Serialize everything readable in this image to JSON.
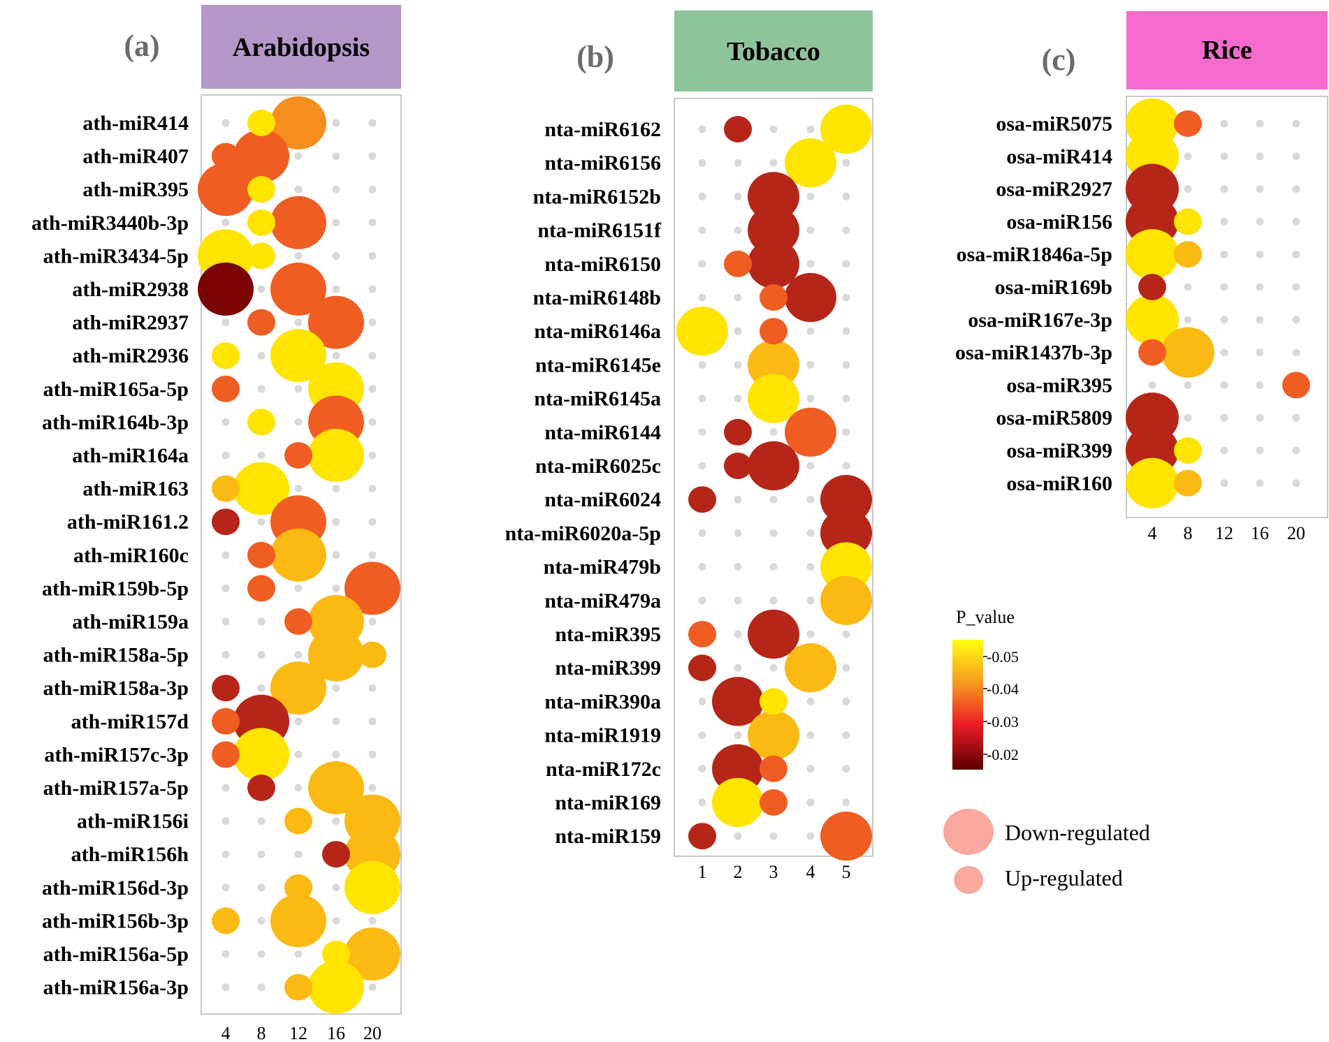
{
  "colors": {
    "panel_a_title_bg": "#b497c9",
    "panel_b_title_bg": "#8fc49b",
    "panel_c_title_bg": "#f56bcd",
    "panel_border": "#c8c8c8",
    "dot_bg": "#d9d9d9",
    "legend_bubble": "#f8a89c",
    "p_0.02": "#7a0404",
    "p_0.025": "#b52619",
    "p_0.03": "#e83221",
    "p_0.035": "#ef5d22",
    "p_0.04": "#f58d1f",
    "p_0.045": "#fbb914",
    "p_0.05": "#ffe400"
  },
  "legend": {
    "p_title": "P_value",
    "colorbar_ticks": [
      "-0.05",
      "-0.04",
      "-0.03",
      "-0.02"
    ],
    "colorbar_values": [
      0.05,
      0.04,
      0.03,
      0.02
    ],
    "size_down_label": "Down-regulated",
    "size_up_label": "Up-regulated"
  },
  "chart_data": [
    {
      "type": "scatter",
      "panel_label": "(a)",
      "title": "Arabidopsis",
      "x_ticks": [
        "4",
        "8",
        "12",
        "16",
        "20"
      ],
      "x_values": [
        4,
        8,
        12,
        16,
        20
      ],
      "rows": [
        "ath-miR414",
        "ath-miR407",
        "ath-miR395",
        "ath-miR3440b-3p",
        "ath-miR3434-5p",
        "ath-miR2938",
        "ath-miR2937",
        "ath-miR2936",
        "ath-miR165a-5p",
        "ath-miR164b-3p",
        "ath-miR164a",
        "ath-miR163",
        "ath-miR161.2",
        "ath-miR160c",
        "ath-miR159b-5p",
        "ath-miR159a",
        "ath-miR158a-5p",
        "ath-miR158a-3p",
        "ath-miR157d",
        "ath-miR157c-3p",
        "ath-miR157a-5p",
        "ath-miR156i",
        "ath-miR156h",
        "ath-miR156d-3p",
        "ath-miR156b-3p",
        "ath-miR156a-5p",
        "ath-miR156a-3p"
      ],
      "points": [
        {
          "row": 0,
          "x": 8,
          "reg": "up",
          "p": 0.05
        },
        {
          "row": 0,
          "x": 12,
          "reg": "down",
          "p": 0.042
        },
        {
          "row": 1,
          "x": 4,
          "reg": "up",
          "p": 0.035
        },
        {
          "row": 1,
          "x": 8,
          "reg": "down",
          "p": 0.035
        },
        {
          "row": 2,
          "x": 4,
          "reg": "down",
          "p": 0.035
        },
        {
          "row": 2,
          "x": 8,
          "reg": "up",
          "p": 0.05
        },
        {
          "row": 3,
          "x": 8,
          "reg": "up",
          "p": 0.05
        },
        {
          "row": 3,
          "x": 12,
          "reg": "down",
          "p": 0.033
        },
        {
          "row": 4,
          "x": 4,
          "reg": "down",
          "p": 0.05
        },
        {
          "row": 4,
          "x": 8,
          "reg": "up",
          "p": 0.05
        },
        {
          "row": 5,
          "x": 4,
          "reg": "down",
          "p": 0.022
        },
        {
          "row": 5,
          "x": 12,
          "reg": "down",
          "p": 0.033
        },
        {
          "row": 6,
          "x": 8,
          "reg": "up",
          "p": 0.035
        },
        {
          "row": 6,
          "x": 16,
          "reg": "down",
          "p": 0.035
        },
        {
          "row": 7,
          "x": 4,
          "reg": "up",
          "p": 0.05
        },
        {
          "row": 7,
          "x": 12,
          "reg": "down",
          "p": 0.05
        },
        {
          "row": 8,
          "x": 4,
          "reg": "up",
          "p": 0.035
        },
        {
          "row": 8,
          "x": 16,
          "reg": "down",
          "p": 0.05
        },
        {
          "row": 9,
          "x": 8,
          "reg": "up",
          "p": 0.05
        },
        {
          "row": 9,
          "x": 16,
          "reg": "down",
          "p": 0.033
        },
        {
          "row": 10,
          "x": 12,
          "reg": "up",
          "p": 0.035
        },
        {
          "row": 10,
          "x": 16,
          "reg": "down",
          "p": 0.05
        },
        {
          "row": 11,
          "x": 4,
          "reg": "up",
          "p": 0.045
        },
        {
          "row": 11,
          "x": 8,
          "reg": "down",
          "p": 0.05
        },
        {
          "row": 12,
          "x": 4,
          "reg": "up",
          "p": 0.025
        },
        {
          "row": 12,
          "x": 12,
          "reg": "down",
          "p": 0.033
        },
        {
          "row": 13,
          "x": 8,
          "reg": "up",
          "p": 0.035
        },
        {
          "row": 13,
          "x": 12,
          "reg": "down",
          "p": 0.045
        },
        {
          "row": 14,
          "x": 8,
          "reg": "up",
          "p": 0.035
        },
        {
          "row": 14,
          "x": 20,
          "reg": "down",
          "p": 0.033
        },
        {
          "row": 15,
          "x": 12,
          "reg": "up",
          "p": 0.035
        },
        {
          "row": 15,
          "x": 16,
          "reg": "down",
          "p": 0.045
        },
        {
          "row": 16,
          "x": 16,
          "reg": "down",
          "p": 0.045
        },
        {
          "row": 16,
          "x": 20,
          "reg": "up",
          "p": 0.045
        },
        {
          "row": 17,
          "x": 4,
          "reg": "up",
          "p": 0.025
        },
        {
          "row": 17,
          "x": 12,
          "reg": "down",
          "p": 0.045
        },
        {
          "row": 18,
          "x": 4,
          "reg": "up",
          "p": 0.035
        },
        {
          "row": 18,
          "x": 8,
          "reg": "down",
          "p": 0.025
        },
        {
          "row": 19,
          "x": 4,
          "reg": "up",
          "p": 0.035
        },
        {
          "row": 19,
          "x": 8,
          "reg": "down",
          "p": 0.05
        },
        {
          "row": 20,
          "x": 8,
          "reg": "up",
          "p": 0.025
        },
        {
          "row": 20,
          "x": 16,
          "reg": "down",
          "p": 0.045
        },
        {
          "row": 21,
          "x": 12,
          "reg": "up",
          "p": 0.045
        },
        {
          "row": 21,
          "x": 20,
          "reg": "down",
          "p": 0.045
        },
        {
          "row": 22,
          "x": 16,
          "reg": "up",
          "p": 0.025
        },
        {
          "row": 22,
          "x": 20,
          "reg": "down",
          "p": 0.045
        },
        {
          "row": 23,
          "x": 12,
          "reg": "up",
          "p": 0.045
        },
        {
          "row": 23,
          "x": 20,
          "reg": "down",
          "p": 0.05
        },
        {
          "row": 24,
          "x": 4,
          "reg": "up",
          "p": 0.045
        },
        {
          "row": 24,
          "x": 12,
          "reg": "down",
          "p": 0.045
        },
        {
          "row": 25,
          "x": 16,
          "reg": "up",
          "p": 0.05
        },
        {
          "row": 25,
          "x": 20,
          "reg": "down",
          "p": 0.045
        },
        {
          "row": 26,
          "x": 12,
          "reg": "up",
          "p": 0.045
        },
        {
          "row": 26,
          "x": 16,
          "reg": "down",
          "p": 0.05
        }
      ]
    },
    {
      "type": "scatter",
      "panel_label": "(b)",
      "title": "Tobacco",
      "x_ticks": [
        "1",
        "2",
        "3",
        "4",
        "5"
      ],
      "x_values": [
        1,
        2,
        3,
        4,
        5
      ],
      "rows": [
        "nta-miR6162",
        "nta-miR6156",
        "nta-miR6152b",
        "nta-miR6151f",
        "nta-miR6150",
        "nta-miR6148b",
        "nta-miR6146a",
        "nta-miR6145e",
        "nta-miR6145a",
        "nta-miR6144",
        "nta-miR6025c",
        "nta-miR6024",
        "nta-miR6020a-5p",
        "nta-miR479b",
        "nta-miR479a",
        "nta-miR395",
        "nta-miR399",
        "nta-miR390a",
        "nta-miR1919",
        "nta-miR172c",
        "nta-miR169",
        "nta-miR159"
      ],
      "points": [
        {
          "row": 0,
          "x": 2,
          "reg": "up",
          "p": 0.025
        },
        {
          "row": 0,
          "x": 5,
          "reg": "down",
          "p": 0.05
        },
        {
          "row": 1,
          "x": 4,
          "reg": "down",
          "p": 0.05
        },
        {
          "row": 2,
          "x": 3,
          "reg": "down",
          "p": 0.025
        },
        {
          "row": 3,
          "x": 3,
          "reg": "down",
          "p": 0.025
        },
        {
          "row": 4,
          "x": 2,
          "reg": "up",
          "p": 0.035
        },
        {
          "row": 4,
          "x": 3,
          "reg": "down",
          "p": 0.025
        },
        {
          "row": 5,
          "x": 3,
          "reg": "up",
          "p": 0.035
        },
        {
          "row": 5,
          "x": 4,
          "reg": "down",
          "p": 0.025
        },
        {
          "row": 6,
          "x": 1,
          "reg": "down",
          "p": 0.05
        },
        {
          "row": 6,
          "x": 3,
          "reg": "up",
          "p": 0.035
        },
        {
          "row": 7,
          "x": 3,
          "reg": "down",
          "p": 0.045
        },
        {
          "row": 8,
          "x": 3,
          "reg": "down",
          "p": 0.05
        },
        {
          "row": 9,
          "x": 2,
          "reg": "up",
          "p": 0.025
        },
        {
          "row": 9,
          "x": 4,
          "reg": "down",
          "p": 0.035
        },
        {
          "row": 10,
          "x": 2,
          "reg": "up",
          "p": 0.025
        },
        {
          "row": 10,
          "x": 3,
          "reg": "down",
          "p": 0.025
        },
        {
          "row": 11,
          "x": 1,
          "reg": "up",
          "p": 0.025
        },
        {
          "row": 11,
          "x": 5,
          "reg": "down",
          "p": 0.025
        },
        {
          "row": 12,
          "x": 5,
          "reg": "down",
          "p": 0.025
        },
        {
          "row": 13,
          "x": 5,
          "reg": "down",
          "p": 0.05
        },
        {
          "row": 14,
          "x": 5,
          "reg": "down",
          "p": 0.045
        },
        {
          "row": 15,
          "x": 1,
          "reg": "up",
          "p": 0.035
        },
        {
          "row": 15,
          "x": 3,
          "reg": "down",
          "p": 0.025
        },
        {
          "row": 16,
          "x": 1,
          "reg": "up",
          "p": 0.025
        },
        {
          "row": 16,
          "x": 4,
          "reg": "down",
          "p": 0.045
        },
        {
          "row": 17,
          "x": 2,
          "reg": "down",
          "p": 0.025
        },
        {
          "row": 17,
          "x": 3,
          "reg": "up",
          "p": 0.05
        },
        {
          "row": 18,
          "x": 3,
          "reg": "down",
          "p": 0.045
        },
        {
          "row": 19,
          "x": 2,
          "reg": "down",
          "p": 0.025
        },
        {
          "row": 19,
          "x": 3,
          "reg": "up",
          "p": 0.035
        },
        {
          "row": 20,
          "x": 2,
          "reg": "down",
          "p": 0.05
        },
        {
          "row": 20,
          "x": 3,
          "reg": "up",
          "p": 0.035
        },
        {
          "row": 21,
          "x": 1,
          "reg": "up",
          "p": 0.025
        },
        {
          "row": 21,
          "x": 5,
          "reg": "down",
          "p": 0.035
        }
      ]
    },
    {
      "type": "scatter",
      "panel_label": "(c)",
      "title": "Rice",
      "x_ticks": [
        "4",
        "8",
        "12",
        "16",
        "20"
      ],
      "x_values": [
        4,
        8,
        12,
        16,
        20
      ],
      "rows": [
        "osa-miR5075",
        "osa-miR414",
        "osa-miR2927",
        "osa-miR156",
        "osa-miR1846a-5p",
        "osa-miR169b",
        "osa-miR167e-3p",
        "osa-miR1437b-3p",
        "osa-miR395",
        "osa-miR5809",
        "osa-miR399",
        "osa-miR160"
      ],
      "points": [
        {
          "row": 0,
          "x": 4,
          "reg": "down",
          "p": 0.05
        },
        {
          "row": 0,
          "x": 8,
          "reg": "up",
          "p": 0.035
        },
        {
          "row": 1,
          "x": 4,
          "reg": "down",
          "p": 0.05
        },
        {
          "row": 2,
          "x": 4,
          "reg": "down",
          "p": 0.025
        },
        {
          "row": 3,
          "x": 4,
          "reg": "down",
          "p": 0.025
        },
        {
          "row": 3,
          "x": 8,
          "reg": "up",
          "p": 0.05
        },
        {
          "row": 4,
          "x": 4,
          "reg": "down",
          "p": 0.05
        },
        {
          "row": 4,
          "x": 8,
          "reg": "up",
          "p": 0.045
        },
        {
          "row": 5,
          "x": 4,
          "reg": "up",
          "p": 0.025
        },
        {
          "row": 6,
          "x": 4,
          "reg": "down",
          "p": 0.05
        },
        {
          "row": 7,
          "x": 4,
          "reg": "up",
          "p": 0.035
        },
        {
          "row": 7,
          "x": 8,
          "reg": "down",
          "p": 0.045
        },
        {
          "row": 8,
          "x": 20,
          "reg": "up",
          "p": 0.035
        },
        {
          "row": 9,
          "x": 4,
          "reg": "down",
          "p": 0.025
        },
        {
          "row": 10,
          "x": 4,
          "reg": "down",
          "p": 0.025
        },
        {
          "row": 10,
          "x": 8,
          "reg": "up",
          "p": 0.05
        },
        {
          "row": 11,
          "x": 4,
          "reg": "down",
          "p": 0.05
        },
        {
          "row": 11,
          "x": 8,
          "reg": "up",
          "p": 0.045
        }
      ]
    }
  ]
}
